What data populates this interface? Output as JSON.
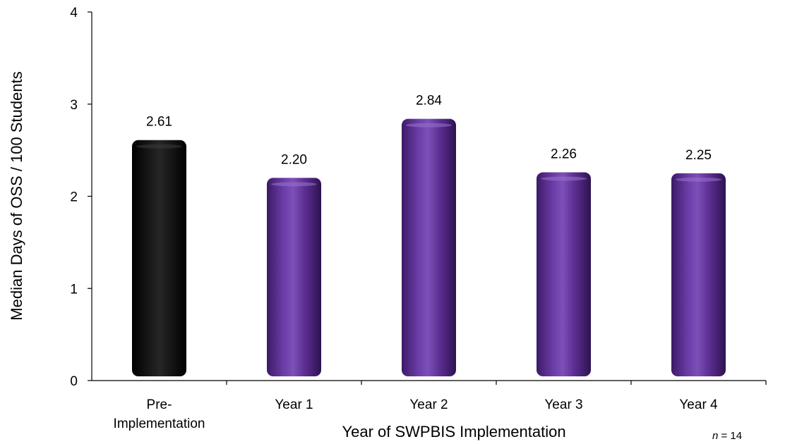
{
  "chart_data": {
    "type": "bar",
    "categories": [
      "Pre-\nImplementation",
      "Year 1",
      "Year 2",
      "Year 3",
      "Year 4"
    ],
    "values": [
      2.61,
      2.2,
      2.84,
      2.26,
      2.25
    ],
    "value_labels": [
      "2.61",
      "2.20",
      "2.84",
      "2.26",
      "2.25"
    ],
    "title": "",
    "xlabel": "Year of SWPBIS Implementation",
    "ylabel": "Median Days of OSS / 100 Students",
    "ylim": [
      0,
      4
    ],
    "yticks": [
      "0",
      "1",
      "2",
      "3",
      "4"
    ],
    "grid": false,
    "colors": {
      "first_bar": "#0a0a0a",
      "other_bars": "#5a2d91"
    }
  },
  "note": {
    "n_symbol": "n",
    "n_text": " = 14"
  }
}
